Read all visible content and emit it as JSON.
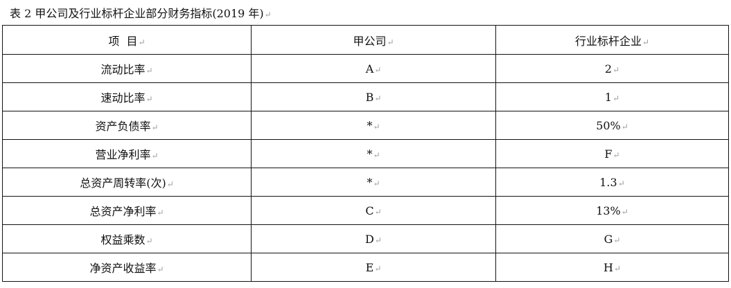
{
  "title": "表 2 甲公司及行业标杆企业部分财务指标(2019 年)",
  "table": {
    "headers": [
      "项  目",
      "甲公司",
      "行业标杆企业"
    ],
    "rows": [
      [
        "流动比率",
        "A",
        "2"
      ],
      [
        "速动比率",
        "B",
        "1"
      ],
      [
        "资产负债率",
        "*",
        "50%"
      ],
      [
        "营业净利率",
        "*",
        "F"
      ],
      [
        "总资产周转率(次)",
        "*",
        "1.3"
      ],
      [
        "总资产净利率",
        "C",
        "13%"
      ],
      [
        "权益乘数",
        "D",
        "G"
      ],
      [
        "净资产收益率",
        "E",
        "H"
      ]
    ]
  }
}
